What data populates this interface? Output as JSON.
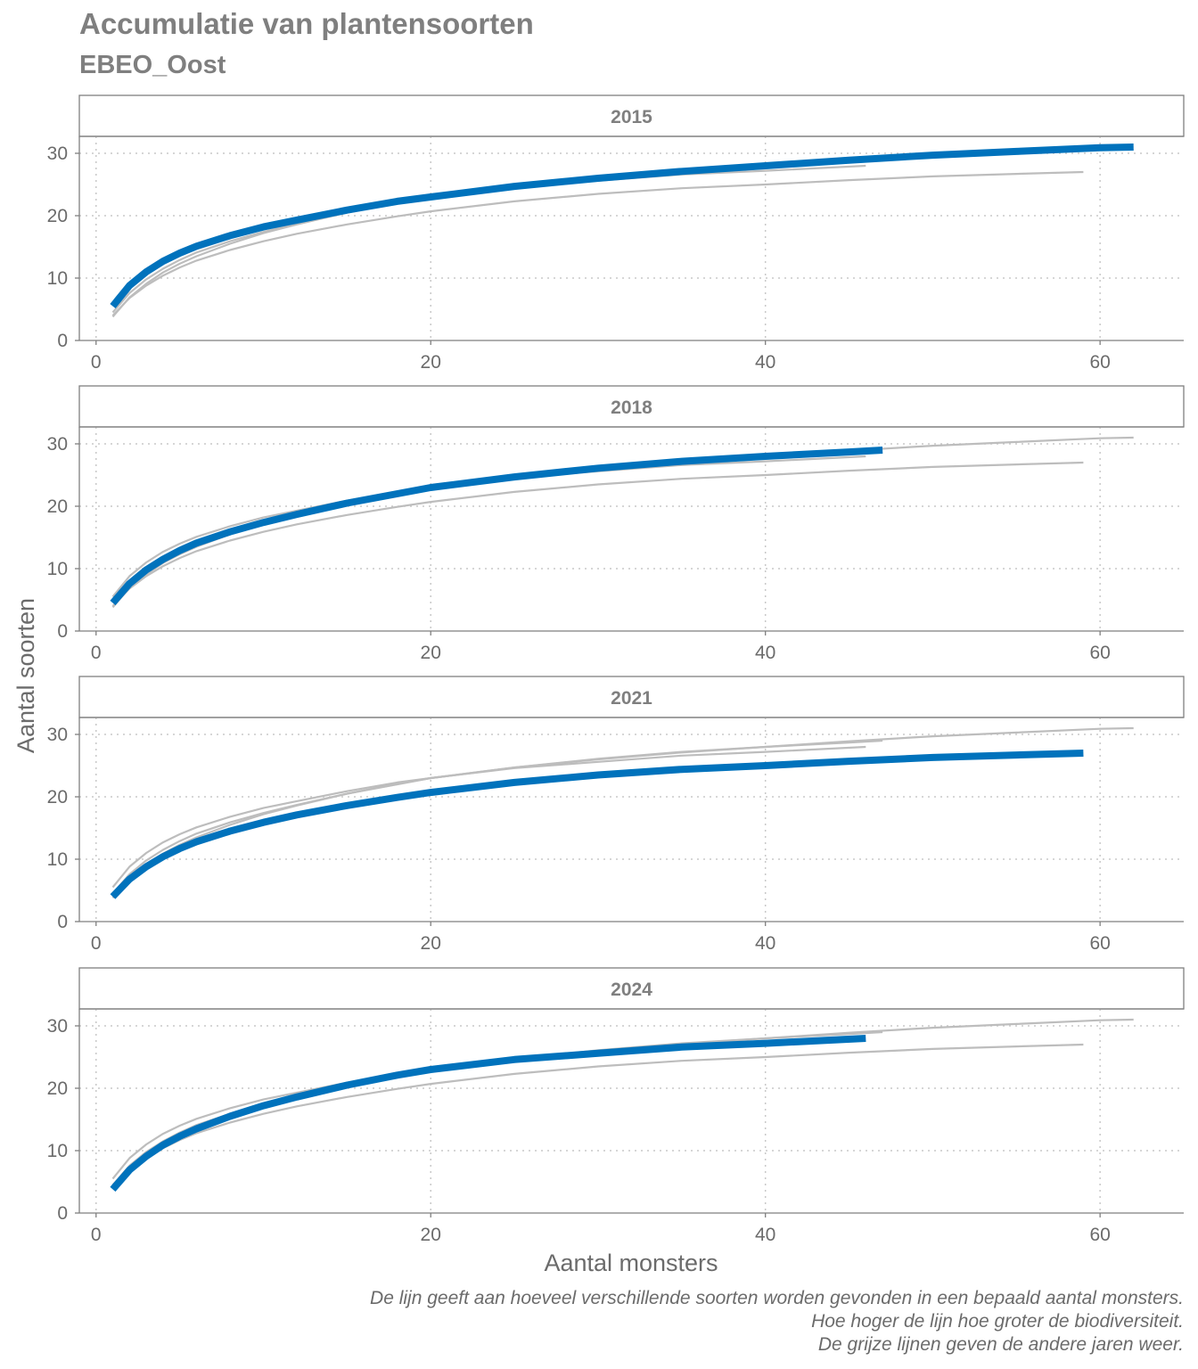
{
  "title": "Accumulatie van plantensoorten",
  "subtitle": "EBEO_Oost",
  "caption": [
    "De lijn geeft aan hoeveel verschillende soorten worden gevonden in een bepaald aantal monsters.",
    "Hoe hoger de lijn hoe groter de biodiversiteit.",
    "De grijze lijnen geven de andere jaren weer."
  ],
  "colors": {
    "highlight": "#0072bc",
    "other": "#bdbdbd",
    "grid": "#c8c8c8",
    "axis": "#7f7f7f"
  },
  "chart_data": {
    "type": "line",
    "xlabel": "Aantal monsters",
    "ylabel": "Aantal soorten",
    "xlim": [
      -1,
      65
    ],
    "ylim": [
      0,
      30
    ],
    "xticks": [
      0,
      20,
      40,
      60
    ],
    "yticks": [
      0,
      10,
      20,
      30
    ],
    "grid": true,
    "panels": [
      "2015",
      "2018",
      "2021",
      "2024"
    ],
    "series": [
      {
        "name": "2015",
        "x": [
          1,
          2,
          3,
          4,
          5,
          6,
          8,
          10,
          12,
          15,
          18,
          20,
          25,
          30,
          35,
          40,
          45,
          50,
          55,
          60,
          62
        ],
        "y": [
          5.5,
          8.8,
          11,
          12.7,
          14,
          15.1,
          16.8,
          18.2,
          19.3,
          20.9,
          22.3,
          23.0,
          24.7,
          26.0,
          27.1,
          28.0,
          28.9,
          29.7,
          30.3,
          30.9,
          31
        ]
      },
      {
        "name": "2018",
        "x": [
          1,
          2,
          3,
          4,
          5,
          6,
          8,
          10,
          12,
          15,
          18,
          20,
          25,
          30,
          35,
          40,
          45,
          47
        ],
        "y": [
          4.5,
          7.6,
          9.8,
          11.5,
          12.9,
          14.1,
          15.9,
          17.4,
          18.7,
          20.5,
          22.0,
          23.0,
          24.7,
          26.1,
          27.2,
          28.0,
          28.7,
          29
        ]
      },
      {
        "name": "2021",
        "x": [
          1,
          2,
          3,
          4,
          5,
          6,
          8,
          10,
          12,
          15,
          18,
          20,
          25,
          30,
          35,
          40,
          45,
          50,
          55,
          59
        ],
        "y": [
          4,
          6.8,
          8.8,
          10.4,
          11.7,
          12.8,
          14.5,
          15.9,
          17.1,
          18.6,
          19.9,
          20.7,
          22.3,
          23.5,
          24.4,
          25.0,
          25.7,
          26.3,
          26.7,
          27
        ]
      },
      {
        "name": "2024",
        "x": [
          1,
          2,
          3,
          4,
          5,
          6,
          8,
          10,
          12,
          15,
          18,
          20,
          25,
          30,
          35,
          40,
          46
        ],
        "y": [
          3.8,
          6.9,
          9.1,
          10.9,
          12.3,
          13.5,
          15.5,
          17.2,
          18.6,
          20.5,
          22.1,
          23.0,
          24.6,
          25.6,
          26.6,
          27.2,
          28
        ]
      }
    ]
  }
}
